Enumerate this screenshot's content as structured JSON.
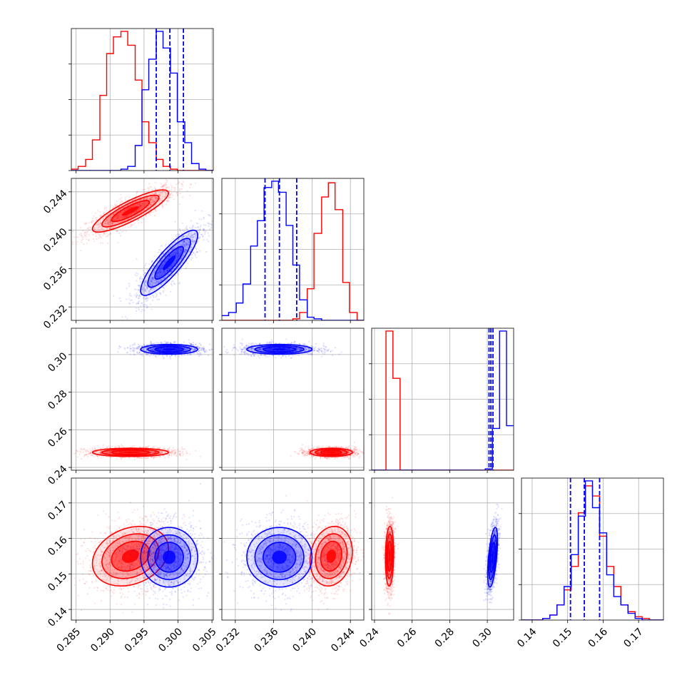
{
  "chart_data": {
    "type": "corner",
    "title": "",
    "params": [
      {
        "range": [
          0.2843,
          0.3052
        ],
        "ticks": [
          "0.285",
          "0.290",
          "0.295",
          "0.300",
          "0.305"
        ]
      },
      {
        "range": [
          0.2306,
          0.2454
        ],
        "ticks": [
          "0.232",
          "0.236",
          "0.240",
          "0.244"
        ]
      },
      {
        "range": [
          0.2385,
          0.314
        ],
        "ticks": [
          "0.24",
          "0.26",
          "0.28",
          "0.30"
        ]
      },
      {
        "range": [
          0.137,
          0.177
        ],
        "ticks": [
          "0.14",
          "0.15",
          "0.16",
          "0.17"
        ]
      }
    ],
    "series": [
      {
        "color": "#ff0000",
        "mean": [
          0.293,
          0.242,
          0.248,
          0.155
        ],
        "std": [
          0.0028,
          0.0011,
          0.0011,
          0.0042
        ],
        "corr": {
          "0-1": 0.85,
          "0-3": 0.25,
          "1-3": 0.15,
          "2-3": 0.1
        },
        "quantile_lines": false
      },
      {
        "color": "#0000ff",
        "mean": [
          0.2987,
          0.2366,
          0.3028,
          0.1547
        ],
        "std": [
          0.0021,
          0.0017,
          0.0013,
          0.0042
        ],
        "corr": {
          "0-1": 0.85,
          "0-3": 0.0,
          "1-3": 0.0,
          "2-3": 0.55
        },
        "quantile_lines": true,
        "quantiles": [
          [
            0.2968,
            0.2988,
            0.3008
          ],
          [
            0.2351,
            0.2366,
            0.2384
          ],
          [
            0.3009,
            0.3019,
            0.303
          ],
          [
            0.1508,
            0.1547,
            0.159
          ]
        ]
      }
    ],
    "histograms": [
      {
        "bins": [
          0.2843,
          0.2853,
          0.2864,
          0.2874,
          0.2885,
          0.2895,
          0.2905,
          0.2916,
          0.2926,
          0.2937,
          0.2947,
          0.2957,
          0.2968,
          0.2978,
          0.2989,
          0.2999,
          0.301,
          0.302,
          0.3031,
          0.3041,
          0.3052
        ],
        "counts": [
          [
            1,
            3,
            8,
            22,
            54,
            84,
            96,
            100,
            90,
            65,
            35,
            20,
            8,
            3,
            1,
            0,
            0,
            0,
            0,
            0
          ],
          [
            0,
            0,
            0,
            0,
            0,
            0,
            0,
            1,
            3,
            18,
            58,
            80,
            100,
            88,
            70,
            35,
            20,
            5,
            1,
            0
          ]
        ]
      },
      {
        "bins": [
          0.2306,
          0.2313,
          0.2321,
          0.2328,
          0.2336,
          0.2343,
          0.235,
          0.2358,
          0.2365,
          0.2373,
          0.238,
          0.2387,
          0.2395,
          0.2402,
          0.241,
          0.2417,
          0.2424,
          0.2432,
          0.2439,
          0.2447,
          0.2454
        ],
        "counts": [
          [
            0,
            0,
            0,
            0,
            0,
            0,
            0,
            0,
            0,
            0,
            1,
            5,
            20,
            55,
            78,
            87,
            70,
            24,
            5,
            0
          ],
          [
            3,
            5,
            11,
            23,
            47,
            63,
            84,
            88,
            81,
            60,
            35,
            13,
            2,
            1,
            0,
            0,
            0,
            0,
            0,
            0
          ]
        ]
      },
      {
        "bins": [
          0.2385,
          0.2423,
          0.2461,
          0.2498,
          0.2536,
          0.2574,
          0.2612,
          0.2649,
          0.2687,
          0.2725,
          0.2763,
          0.28,
          0.2838,
          0.2876,
          0.2914,
          0.2951,
          0.2989,
          0.3027,
          0.3065,
          0.3102,
          0.314
        ],
        "counts": [
          [
            0,
            0,
            100,
            66,
            0,
            0,
            0,
            0,
            0,
            0,
            0,
            0,
            0,
            0,
            0,
            0,
            0,
            0,
            0,
            0
          ],
          [
            0,
            0,
            0,
            0,
            0,
            0,
            0,
            0,
            0,
            0,
            0,
            0,
            0,
            0,
            0,
            0,
            1,
            30,
            100,
            32
          ]
        ]
      },
      {
        "bins": [
          0.137,
          0.139,
          0.141,
          0.143,
          0.145,
          0.147,
          0.149,
          0.151,
          0.153,
          0.155,
          0.157,
          0.159,
          0.161,
          0.163,
          0.165,
          0.167,
          0.169,
          0.171,
          0.173,
          0.175,
          0.177
        ],
        "counts": [
          [
            0,
            0,
            0,
            1,
            3,
            9,
            18,
            32,
            64,
            80,
            74,
            50,
            32,
            20,
            9,
            5,
            2,
            1,
            0,
            0
          ],
          [
            0,
            0,
            0,
            1,
            3,
            9,
            20,
            39,
            62,
            83,
            67,
            52,
            27,
            14,
            9,
            4,
            1,
            0,
            0,
            0
          ]
        ]
      }
    ],
    "grid": true,
    "legend": "none"
  }
}
